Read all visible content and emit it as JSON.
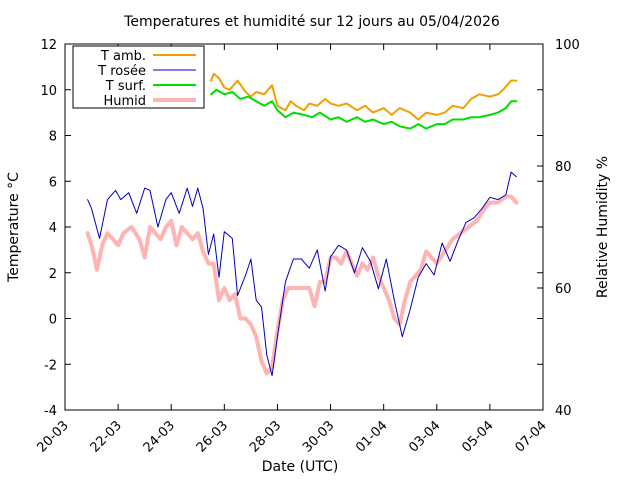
{
  "chart_data": {
    "type": "line",
    "title": "Temperatures et humidité sur 12 jours au 05/04/2026",
    "xlabel": "Date (UTC)",
    "ylabel": "Temperature °C",
    "y2label": "Relative Humidity %",
    "xticks": [
      "20-03",
      "22-03",
      "24-03",
      "26-03",
      "28-03",
      "30-03",
      "01-04",
      "03-04",
      "05-04",
      "07-04"
    ],
    "xlim": [
      0,
      18
    ],
    "ylim": [
      -4,
      12
    ],
    "yticks": [
      -4,
      -2,
      0,
      2,
      4,
      6,
      8,
      10,
      12
    ],
    "y2lim": [
      40,
      100
    ],
    "y2ticks": [
      40,
      60,
      80,
      100
    ],
    "grid": false,
    "legend_position": "top-left",
    "series": [
      {
        "name": "T amb.",
        "color": "#f0a000",
        "axis": "left",
        "x": [
          5.5,
          5.6,
          5.8,
          6.0,
          6.2,
          6.5,
          6.8,
          7.0,
          7.2,
          7.5,
          7.8,
          8.0,
          8.3,
          8.5,
          8.7,
          9.0,
          9.2,
          9.5,
          9.8,
          10.0,
          10.3,
          10.6,
          11.0,
          11.3,
          11.6,
          12.0,
          12.3,
          12.6,
          13.0,
          13.3,
          13.6,
          14.0,
          14.3,
          14.6,
          15.0,
          15.3,
          15.6,
          16.0,
          16.3,
          16.5,
          16.8,
          17.0
        ],
        "values": [
          10.4,
          10.7,
          10.5,
          10.1,
          10.0,
          10.4,
          9.9,
          9.7,
          9.9,
          9.8,
          10.2,
          9.3,
          9.1,
          9.5,
          9.3,
          9.1,
          9.4,
          9.3,
          9.6,
          9.4,
          9.3,
          9.4,
          9.1,
          9.3,
          9.0,
          9.2,
          8.9,
          9.2,
          9.0,
          8.7,
          9.0,
          8.9,
          9.0,
          9.3,
          9.2,
          9.6,
          9.8,
          9.7,
          9.8,
          10.0,
          10.4,
          10.4
        ]
      },
      {
        "name": "T rosée",
        "color": "#0000c0",
        "axis": "left",
        "x": [
          0.85,
          1.0,
          1.3,
          1.6,
          1.9,
          2.1,
          2.4,
          2.7,
          3.0,
          3.2,
          3.5,
          3.8,
          4.0,
          4.3,
          4.6,
          4.8,
          5.0,
          5.2,
          5.4,
          5.6,
          5.8,
          6.0,
          6.3,
          6.5,
          6.8,
          7.0,
          7.2,
          7.4,
          7.6,
          7.8,
          8.0,
          8.3,
          8.6,
          8.9,
          9.2,
          9.5,
          9.8,
          10.0,
          10.3,
          10.6,
          10.9,
          11.2,
          11.5,
          11.8,
          12.1,
          12.4,
          12.7,
          13.0,
          13.3,
          13.6,
          13.9,
          14.2,
          14.5,
          14.8,
          15.1,
          15.4,
          15.7,
          16.0,
          16.3,
          16.6,
          16.8,
          17.0
        ],
        "values": [
          5.2,
          4.8,
          3.5,
          5.2,
          5.6,
          5.2,
          5.5,
          4.6,
          5.7,
          5.6,
          4.0,
          5.2,
          5.5,
          4.6,
          5.7,
          4.9,
          5.7,
          4.8,
          2.8,
          3.7,
          1.8,
          3.8,
          3.5,
          1.0,
          1.9,
          2.6,
          0.8,
          0.5,
          -1.6,
          -2.5,
          -0.8,
          1.6,
          2.6,
          2.6,
          2.2,
          3.0,
          1.2,
          2.7,
          3.2,
          3.0,
          2.0,
          3.1,
          2.5,
          1.3,
          2.6,
          0.8,
          -0.8,
          0.4,
          1.8,
          2.4,
          1.9,
          3.3,
          2.5,
          3.4,
          4.2,
          4.4,
          4.8,
          5.3,
          5.2,
          5.4,
          6.4,
          6.2
        ]
      },
      {
        "name": "T surf.",
        "color": "#00dd00",
        "axis": "left",
        "x": [
          5.5,
          5.7,
          6.0,
          6.3,
          6.6,
          6.9,
          7.2,
          7.5,
          7.8,
          8.0,
          8.3,
          8.6,
          9.0,
          9.3,
          9.6,
          10.0,
          10.3,
          10.6,
          11.0,
          11.3,
          11.6,
          12.0,
          12.3,
          12.6,
          13.0,
          13.3,
          13.6,
          14.0,
          14.3,
          14.6,
          15.0,
          15.3,
          15.6,
          16.0,
          16.3,
          16.6,
          16.8,
          17.0
        ],
        "values": [
          9.8,
          10.0,
          9.8,
          9.9,
          9.6,
          9.7,
          9.5,
          9.3,
          9.5,
          9.1,
          8.8,
          9.0,
          8.9,
          8.8,
          9.0,
          8.7,
          8.8,
          8.6,
          8.8,
          8.6,
          8.7,
          8.5,
          8.6,
          8.4,
          8.3,
          8.5,
          8.3,
          8.5,
          8.5,
          8.7,
          8.7,
          8.8,
          8.8,
          8.9,
          9.0,
          9.2,
          9.5,
          9.5
        ]
      },
      {
        "name": "Humid",
        "color": "#ffb3b3",
        "axis": "right",
        "x": [
          0.85,
          1.0,
          1.2,
          1.4,
          1.6,
          1.8,
          2.0,
          2.2,
          2.5,
          2.8,
          3.0,
          3.2,
          3.4,
          3.6,
          3.8,
          4.0,
          4.2,
          4.4,
          4.6,
          4.8,
          5.0,
          5.2,
          5.4,
          5.6,
          5.8,
          6.0,
          6.2,
          6.4,
          6.6,
          6.8,
          7.0,
          7.2,
          7.4,
          7.6,
          7.8,
          8.0,
          8.2,
          8.4,
          8.6,
          8.8,
          9.0,
          9.2,
          9.4,
          9.6,
          9.8,
          10.0,
          10.2,
          10.4,
          10.6,
          10.8,
          11.0,
          11.2,
          11.4,
          11.6,
          11.8,
          12.0,
          12.2,
          12.4,
          12.6,
          12.8,
          13.0,
          13.2,
          13.4,
          13.6,
          13.8,
          14.0,
          14.3,
          14.6,
          14.9,
          15.2,
          15.5,
          15.8,
          16.0,
          16.3,
          16.6,
          16.8,
          17.0
        ],
        "values": [
          69,
          67,
          63,
          67,
          69,
          68,
          67,
          69,
          70,
          68,
          65,
          70,
          69,
          68,
          70,
          71,
          67,
          70,
          69,
          68,
          69,
          66,
          64,
          64,
          58,
          60,
          58,
          59,
          55,
          55,
          54,
          52,
          48,
          46,
          47,
          53,
          58,
          60,
          60,
          60,
          60,
          60,
          57,
          61,
          61,
          65,
          65,
          64,
          66,
          64,
          62,
          64,
          63,
          65,
          62,
          60,
          58,
          55,
          54,
          58,
          61,
          62,
          63,
          66,
          65,
          64,
          66,
          68,
          69,
          70,
          71,
          73,
          74,
          74,
          75,
          75,
          74
        ]
      }
    ]
  }
}
